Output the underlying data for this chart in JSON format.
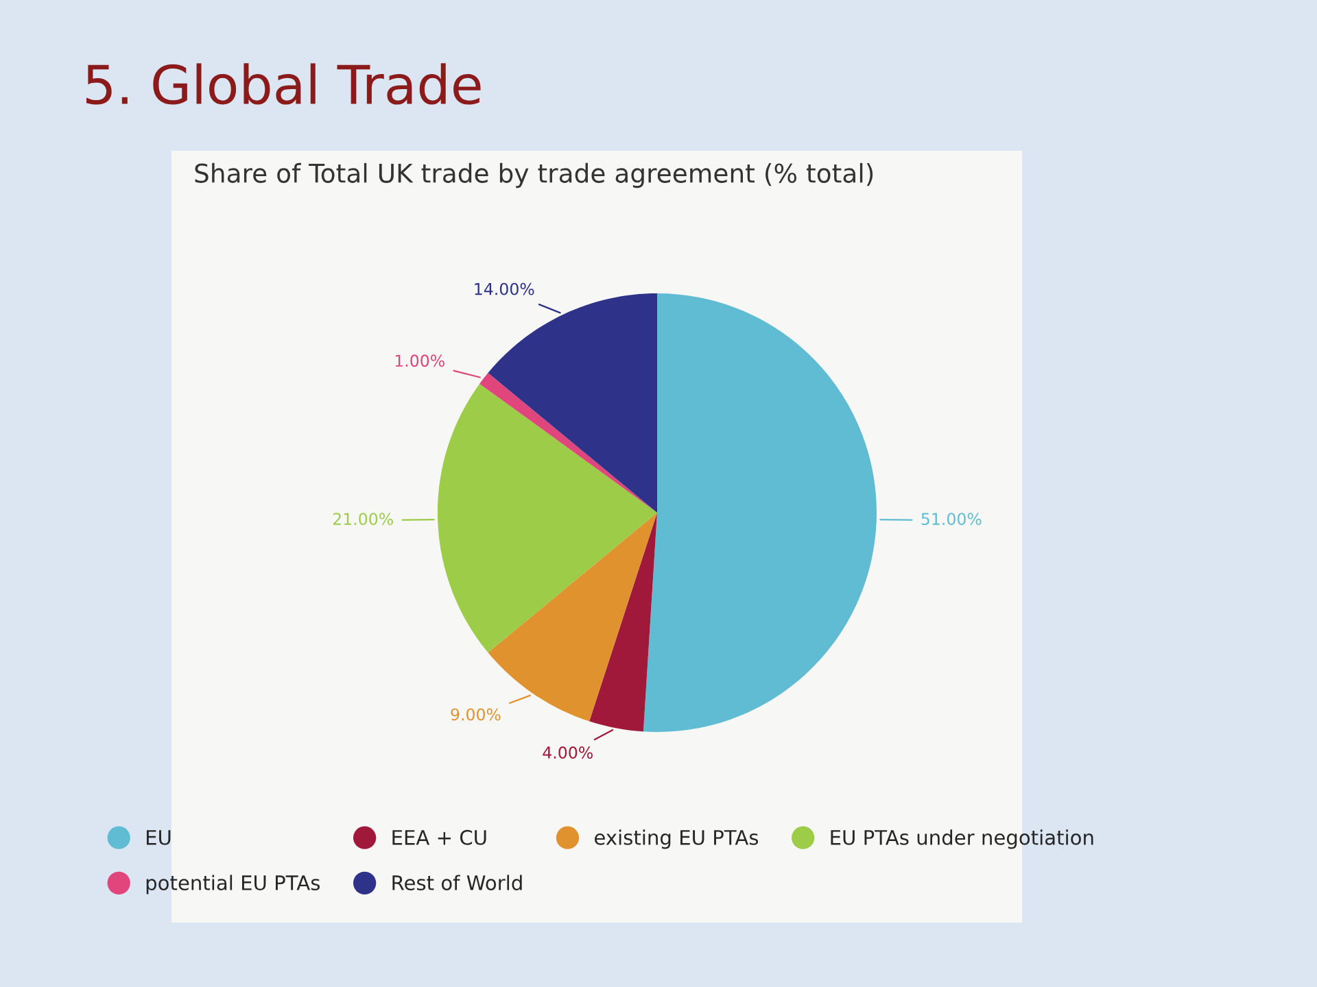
{
  "chart_data": {
    "type": "pie",
    "title": "5. Global Trade",
    "subtitle": "Share of Total UK trade by trade agreement (% total)",
    "categories": [
      "EU",
      "EEA + CU",
      "existing EU PTAs",
      "EU PTAs under negotiation",
      "potential EU PTAs",
      "Rest of World"
    ],
    "values": [
      51,
      4,
      9,
      21,
      1,
      14
    ],
    "value_labels": [
      "51.00%",
      "4.00%",
      "9.00%",
      "21.00%",
      "1.00%",
      "14.00%"
    ],
    "colors": [
      "#5fbcd3",
      "#a0193a",
      "#e0922f",
      "#9ccc48",
      "#e0457b",
      "#2e3389"
    ],
    "legend": "bottom"
  }
}
